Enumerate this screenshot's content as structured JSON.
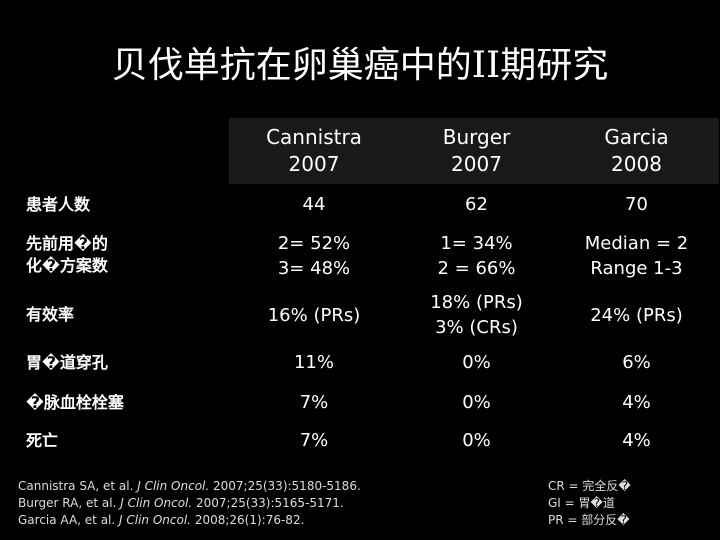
{
  "slide": {
    "title": "贝伐单抗在卵巢癌中的II期研究"
  },
  "table": {
    "headers": [
      {
        "line1": "Cannistra",
        "line2": "2007"
      },
      {
        "line1": "Burger",
        "line2": "2007"
      },
      {
        "line1": "Garcia",
        "line2": "2008"
      }
    ],
    "rows": [
      {
        "label_l1": "患者人数",
        "label_l2": "",
        "cells": [
          {
            "l1": "44",
            "l2": ""
          },
          {
            "l1": "62",
            "l2": ""
          },
          {
            "l1": "70",
            "l2": ""
          }
        ]
      },
      {
        "label_l1": "先前用�的",
        "label_l2": "化�方案数",
        "cells": [
          {
            "l1": "2= 52%",
            "l2": "3= 48%"
          },
          {
            "l1": "1= 34%",
            "l2": "2 = 66%"
          },
          {
            "l1": "Median = 2",
            "l2": "Range 1-3"
          }
        ]
      },
      {
        "label_l1": "有效率",
        "label_l2": "",
        "cells": [
          {
            "l1": "16% (PRs)",
            "l2": ""
          },
          {
            "l1": "18% (PRs)",
            "l2": "3% (CRs)"
          },
          {
            "l1": "24% (PRs)",
            "l2": ""
          }
        ]
      },
      {
        "label_l1": "胃�道穿孔",
        "label_l2": "",
        "cells": [
          {
            "l1": "11%",
            "l2": ""
          },
          {
            "l1": "0%",
            "l2": ""
          },
          {
            "l1": "6%",
            "l2": ""
          }
        ]
      },
      {
        "label_l1": "�脉血栓栓塞",
        "label_l2": "",
        "cells": [
          {
            "l1": "7%",
            "l2": ""
          },
          {
            "l1": "0%",
            "l2": ""
          },
          {
            "l1": "4%",
            "l2": ""
          }
        ]
      },
      {
        "label_l1": "死亡",
        "label_l2": "",
        "cells": [
          {
            "l1": "7%",
            "l2": ""
          },
          {
            "l1": "0%",
            "l2": ""
          },
          {
            "l1": "4%",
            "l2": ""
          }
        ]
      }
    ]
  },
  "references": [
    {
      "pre": "Cannistra SA, et al. ",
      "journal": "J Clin Oncol.",
      "post": " 2007;25(33):5180-5186."
    },
    {
      "pre": "Burger RA, et al. ",
      "journal": "J Clin Oncol.",
      "post": " 2007;25(33):5165-5171."
    },
    {
      "pre": "Garcia AA, et al. ",
      "journal": "J Clin Oncol.",
      "post": " 2008;26(1):76-82."
    }
  ],
  "abbreviations": [
    "CR = 完全反�",
    "GI = 胃�道",
    "PR = 部分反�"
  ]
}
